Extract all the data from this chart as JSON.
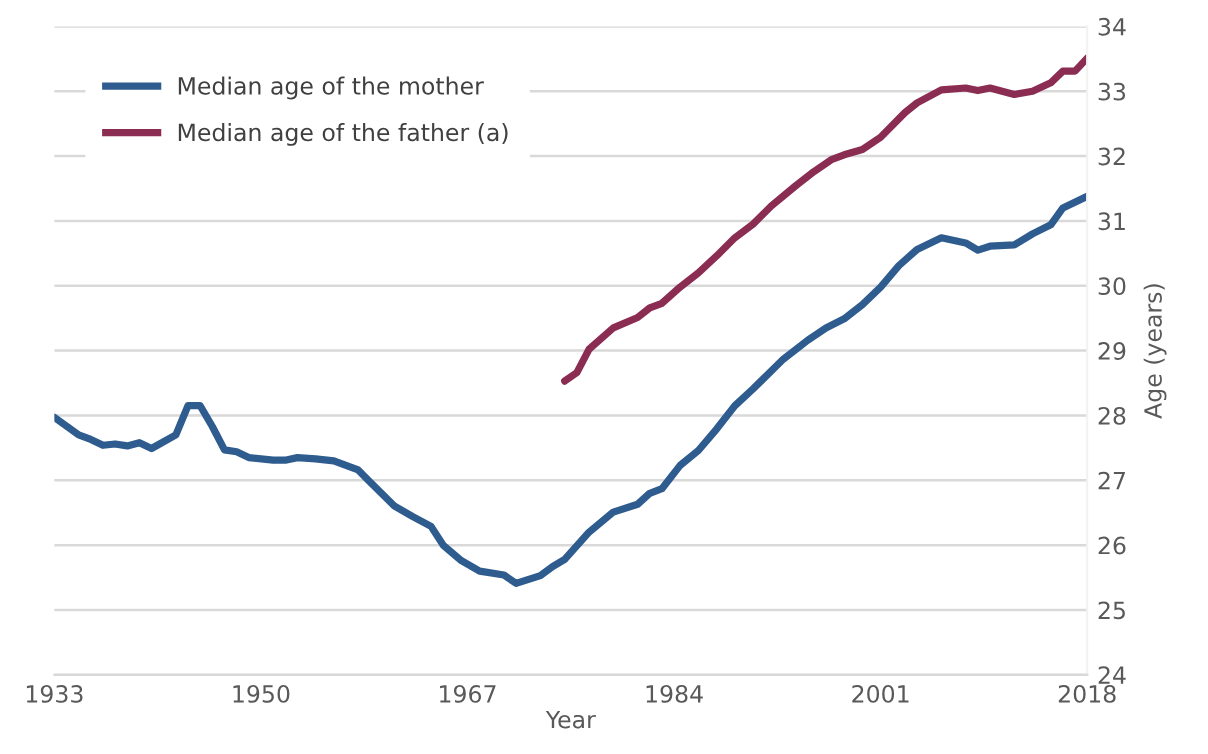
{
  "chart_data": {
    "type": "line",
    "xlabel": "Year",
    "ylabel": "Age (years)",
    "xlim": [
      1933,
      2018
    ],
    "xticks": [
      1933,
      1950,
      1967,
      1984,
      2001,
      2018
    ],
    "ylim": [
      24,
      34
    ],
    "yticks": [
      24,
      25,
      26,
      27,
      28,
      29,
      30,
      31,
      32,
      33,
      34
    ],
    "grid": "y",
    "legend": "top left",
    "marker": "none",
    "line_style": "solid",
    "series": [
      {
        "name": "Median age of the mother",
        "color": "#2f5c8f",
        "x": [
          1933,
          1935,
          1936,
          1937,
          1938,
          1939,
          1940,
          1941,
          1943,
          1944,
          1945,
          1946,
          1947,
          1948,
          1949,
          1951,
          1952,
          1953,
          1954.5,
          1956,
          1958,
          1959,
          1961,
          1962.5,
          1964,
          1965,
          1966.5,
          1968,
          1970,
          1971,
          1973,
          1974,
          1975,
          1977,
          1979,
          1981,
          1982,
          1983,
          1984.5,
          1986,
          1987.5,
          1989,
          1990.5,
          1993,
          1995,
          1996.5,
          1998,
          1999.5,
          2001,
          2002.5,
          2004,
          2006,
          2008,
          2009,
          2010,
          2012,
          2013.5,
          2015,
          2016,
          2018
        ],
        "values": [
          27.97,
          27.7,
          27.63,
          27.54,
          27.56,
          27.53,
          27.58,
          27.49,
          27.7,
          28.15,
          28.15,
          27.83,
          27.47,
          27.44,
          27.35,
          27.31,
          27.31,
          27.35,
          27.33,
          27.3,
          27.16,
          26.97,
          26.6,
          26.44,
          26.29,
          26.0,
          25.76,
          25.6,
          25.54,
          25.41,
          25.53,
          25.67,
          25.78,
          26.2,
          26.51,
          26.63,
          26.8,
          26.87,
          27.23,
          27.46,
          27.79,
          28.15,
          28.41,
          28.87,
          29.16,
          29.35,
          29.49,
          29.71,
          29.98,
          30.31,
          30.56,
          30.74,
          30.66,
          30.55,
          30.61,
          30.63,
          30.8,
          30.94,
          31.2,
          31.38
        ]
      },
      {
        "name": "Median age of the father (a)",
        "color": "#8b2d52",
        "x": [
          1975,
          1976,
          1977,
          1979,
          1981,
          1982,
          1983,
          1984.5,
          1986,
          1987.5,
          1989,
          1990.5,
          1992,
          1994,
          1995.5,
          1997,
          1998,
          1999.5,
          2001,
          2003,
          2004,
          2006,
          2008,
          2009,
          2010,
          2012,
          2013.5,
          2015,
          2016,
          2017,
          2018
        ],
        "values": [
          28.53,
          28.66,
          29.02,
          29.35,
          29.51,
          29.66,
          29.73,
          29.98,
          30.2,
          30.46,
          30.74,
          30.95,
          31.23,
          31.54,
          31.76,
          31.95,
          32.02,
          32.1,
          32.29,
          32.67,
          32.82,
          33.02,
          33.05,
          33.01,
          33.05,
          32.95,
          33.0,
          33.13,
          33.31,
          33.31,
          33.51
        ]
      }
    ]
  }
}
